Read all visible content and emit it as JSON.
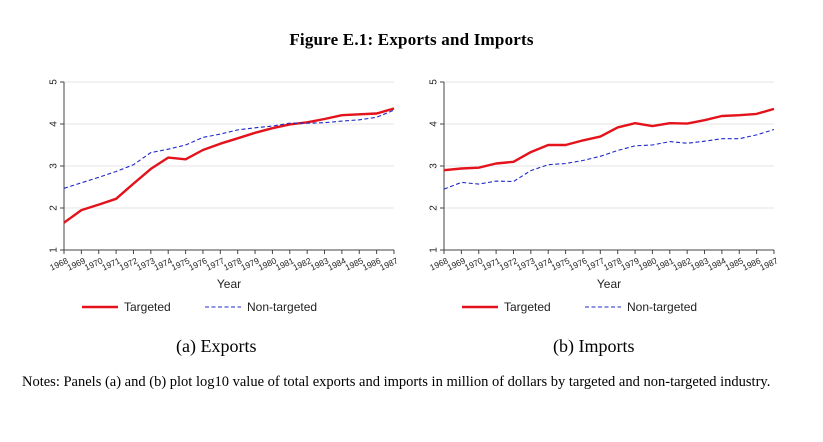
{
  "figure_title": "Figure E.1: Exports and Imports",
  "notes": "Notes: Panels (a) and (b) plot log10 value of total exports and imports in million of dollars by targeted and non-targeted industry.",
  "colors": {
    "targeted": "#e3121b",
    "non_targeted": "#1f28c8",
    "grid": "#e6e6e6"
  },
  "chart_data": [
    {
      "type": "line",
      "panel": "a",
      "caption": "(a) Exports",
      "xlabel": "Year",
      "ylabel": "",
      "x": [
        "1968",
        "1969",
        "1970",
        "1971",
        "1972",
        "1973",
        "1974",
        "1975",
        "1976",
        "1977",
        "1978",
        "1979",
        "1980",
        "1981",
        "1982",
        "1983",
        "1984",
        "1985",
        "1986",
        "1987"
      ],
      "yticks": [
        "1",
        "2",
        "3",
        "4",
        "5"
      ],
      "ylim": [
        1,
        5
      ],
      "grid": true,
      "legend_position": "bottom",
      "series": [
        {
          "name": "Targeted",
          "style": "solid",
          "values": [
            1.65,
            1.95,
            2.08,
            2.22,
            2.58,
            2.93,
            3.2,
            3.16,
            3.38,
            3.53,
            3.66,
            3.79,
            3.9,
            3.99,
            4.04,
            4.12,
            4.21,
            4.23,
            4.25,
            4.37
          ]
        },
        {
          "name": "Non-targeted",
          "style": "dashed",
          "values": [
            2.47,
            2.6,
            2.73,
            2.87,
            3.03,
            3.32,
            3.4,
            3.5,
            3.68,
            3.76,
            3.86,
            3.91,
            3.95,
            4.02,
            4.02,
            4.03,
            4.07,
            4.1,
            4.16,
            4.33
          ]
        }
      ]
    },
    {
      "type": "line",
      "panel": "b",
      "caption": "(b) Imports",
      "xlabel": "Year",
      "ylabel": "",
      "x": [
        "1968",
        "1969",
        "1970",
        "1971",
        "1972",
        "1973",
        "1974",
        "1975",
        "1976",
        "1977",
        "1978",
        "1979",
        "1980",
        "1981",
        "1982",
        "1983",
        "1984",
        "1985",
        "1986",
        "1987"
      ],
      "yticks": [
        "1",
        "2",
        "3",
        "4",
        "5"
      ],
      "ylim": [
        1,
        5
      ],
      "grid": true,
      "legend_position": "bottom",
      "series": [
        {
          "name": "Targeted",
          "style": "solid",
          "values": [
            2.9,
            2.94,
            2.96,
            3.06,
            3.1,
            3.33,
            3.5,
            3.5,
            3.61,
            3.7,
            3.92,
            4.02,
            3.95,
            4.02,
            4.01,
            4.09,
            4.19,
            4.21,
            4.24,
            4.36
          ]
        },
        {
          "name": "Non-targeted",
          "style": "dashed",
          "values": [
            2.45,
            2.61,
            2.57,
            2.64,
            2.63,
            2.89,
            3.03,
            3.06,
            3.13,
            3.23,
            3.37,
            3.48,
            3.5,
            3.58,
            3.54,
            3.59,
            3.65,
            3.65,
            3.74,
            3.87
          ]
        }
      ]
    }
  ]
}
